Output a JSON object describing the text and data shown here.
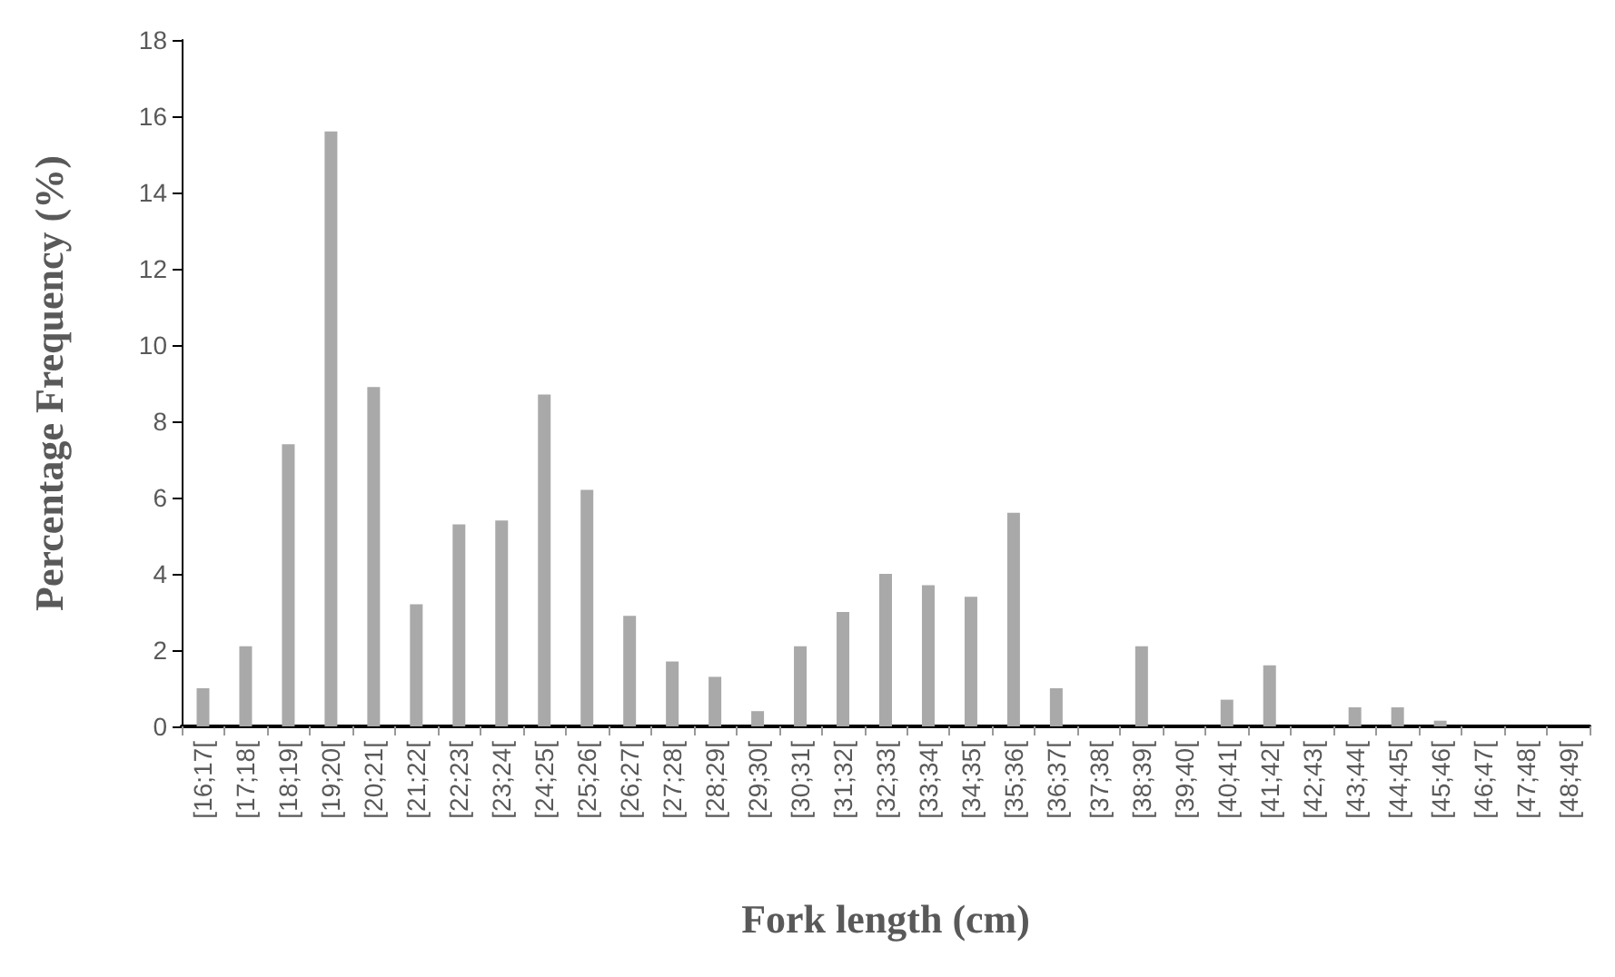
{
  "chart_data": {
    "type": "bar",
    "xlabel": "Fork length (cm)",
    "ylabel": "Percentage Frequency (%)",
    "categories": [
      "[16;17[",
      "[17;18[",
      "[18;19[",
      "[19;20[",
      "[20;21[",
      "[21;22[",
      "[22;23[",
      "[23;24[",
      "[24;25[",
      "[25;26[",
      "[26;27[",
      "[27;28[",
      "[28;29[",
      "[29;30[",
      "[30;31[",
      "[31;32[",
      "[32;33[",
      "[33;34[",
      "[34;35[",
      "[35;36[",
      "[36;37[",
      "[37;38[",
      "[38;39[",
      "[39;40[",
      "[40;41[",
      "[41;42[",
      "[42;43[",
      "[43;44[",
      "[44;45[",
      "[45;46[",
      "[46;47[",
      "[47;48[",
      "[48;49["
    ],
    "values": [
      1.0,
      2.1,
      7.4,
      15.6,
      8.9,
      3.2,
      5.3,
      5.4,
      8.7,
      6.2,
      2.9,
      1.7,
      1.3,
      0.4,
      2.1,
      3.0,
      4.0,
      3.7,
      3.4,
      5.6,
      1.0,
      0,
      2.1,
      0,
      0.7,
      1.6,
      0,
      0.5,
      0.5,
      0.15,
      0,
      0,
      0
    ],
    "color": "#a9a9a9",
    "ylim": [
      0,
      18
    ],
    "yticks": [
      0,
      2,
      4,
      6,
      8,
      10,
      12,
      14,
      16,
      18
    ],
    "grid": false
  }
}
